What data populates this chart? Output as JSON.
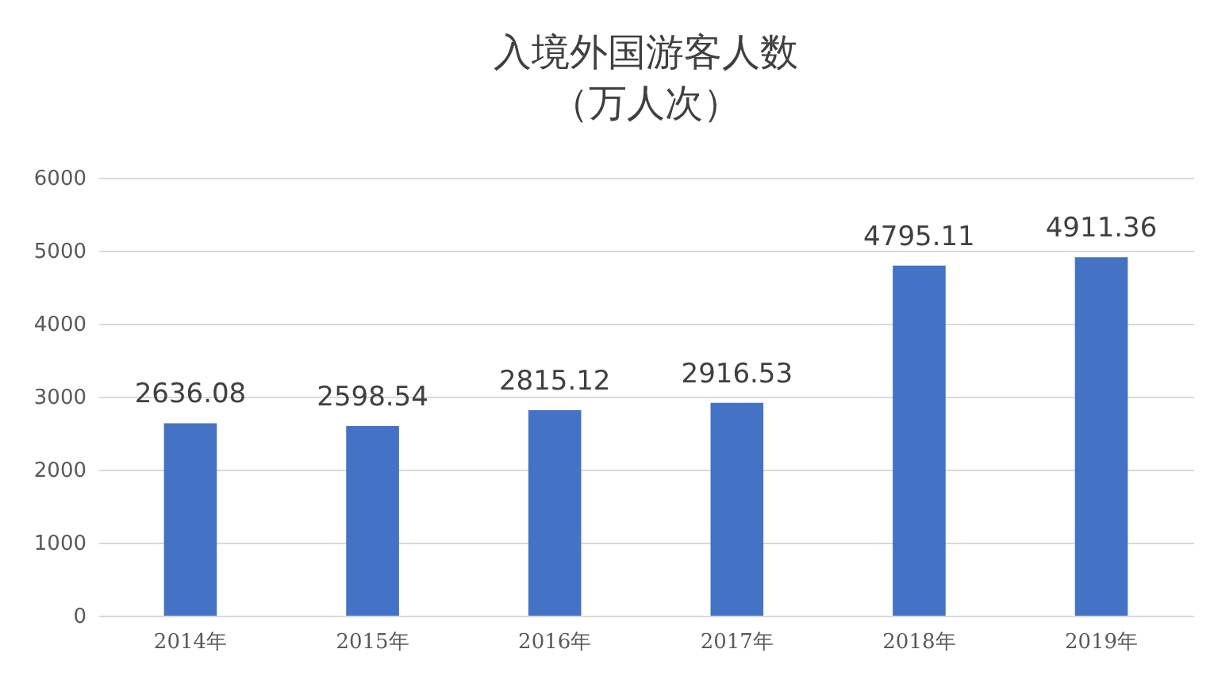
{
  "chart_data": {
    "type": "bar",
    "title": "入境外国游客人数",
    "subtitle": "（万人次）",
    "categories": [
      "2014年",
      "2015年",
      "2016年",
      "2017年",
      "2018年",
      "2019年"
    ],
    "values": [
      2636.08,
      2598.54,
      2815.12,
      2916.53,
      4795.11,
      4911.36
    ],
    "color": "#4472c4",
    "ylim": [
      0,
      6000
    ],
    "yticks": [
      0,
      1000,
      2000,
      3000,
      4000,
      5000,
      6000
    ],
    "grid": "y",
    "data_labels": true
  }
}
